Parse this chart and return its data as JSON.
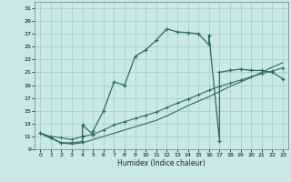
{
  "xlabel": "Humidex (Indice chaleur)",
  "bg_color": "#cbe8e8",
  "grid_color": "#a8d0c8",
  "line_color": "#2d6b5e",
  "xlim": [
    -0.5,
    23.5
  ],
  "ylim": [
    9,
    32
  ],
  "xticks": [
    0,
    1,
    2,
    3,
    4,
    5,
    6,
    7,
    8,
    9,
    10,
    11,
    12,
    13,
    14,
    15,
    16,
    17,
    18,
    19,
    20,
    21,
    22,
    23
  ],
  "yticks": [
    9,
    11,
    13,
    15,
    17,
    19,
    21,
    23,
    25,
    27,
    29,
    31
  ],
  "curve1_x": [
    0,
    1,
    2,
    3,
    4,
    4,
    5,
    5,
    6,
    7,
    8,
    9,
    10,
    11,
    12,
    13,
    14,
    15,
    16,
    16,
    17,
    17,
    18,
    19,
    20,
    21,
    22,
    23
  ],
  "curve1_y": [
    11.5,
    10.8,
    10.0,
    10.0,
    10.2,
    12.8,
    11.3,
    11.8,
    15.0,
    19.5,
    19.0,
    23.5,
    24.5,
    26.0,
    27.8,
    27.3,
    27.2,
    27.0,
    25.3,
    26.8,
    10.3,
    21.0,
    21.3,
    21.5,
    21.3,
    21.3,
    21.0,
    20.0
  ],
  "curve2_x": [
    0,
    1,
    2,
    3,
    4,
    5,
    6,
    7,
    8,
    9,
    10,
    11,
    12,
    13,
    14,
    15,
    16,
    17,
    18,
    19,
    20,
    21,
    22,
    23
  ],
  "curve2_y": [
    11.5,
    11.0,
    10.8,
    10.5,
    11.0,
    11.3,
    12.0,
    12.8,
    13.3,
    13.8,
    14.3,
    14.8,
    15.5,
    16.2,
    16.8,
    17.5,
    18.2,
    18.8,
    19.3,
    19.8,
    20.3,
    20.8,
    21.2,
    21.7
  ],
  "curve3_x": [
    0,
    1,
    2,
    3,
    4,
    5,
    6,
    7,
    8,
    9,
    10,
    11,
    12,
    13,
    14,
    15,
    16,
    17,
    18,
    19,
    20,
    21,
    22,
    23
  ],
  "curve3_y": [
    11.5,
    10.7,
    10.0,
    9.8,
    10.0,
    10.5,
    11.0,
    11.5,
    12.0,
    12.5,
    13.0,
    13.5,
    14.2,
    15.0,
    15.8,
    16.5,
    17.2,
    18.0,
    18.8,
    19.5,
    20.2,
    21.0,
    21.8,
    22.5
  ]
}
